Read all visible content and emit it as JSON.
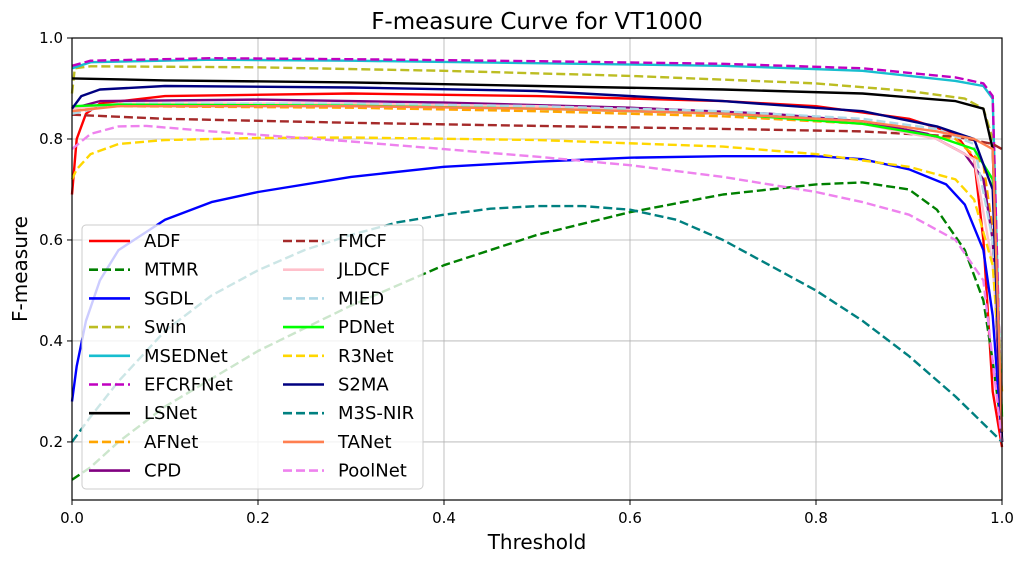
{
  "chart_data": {
    "type": "line",
    "title": "F-measure Curve for VT1000",
    "xlabel": "Threshold",
    "ylabel": "F-measure",
    "xlim": [
      0,
      1
    ],
    "ylim": [
      0.085,
      1.0
    ],
    "xticks": [
      0.0,
      0.2,
      0.4,
      0.6,
      0.8,
      1.0
    ],
    "xtick_labels": [
      "0.0",
      "0.2",
      "0.4",
      "0.6",
      "0.8",
      "1.0"
    ],
    "yticks": [
      0.2,
      0.4,
      0.6,
      0.8,
      1.0
    ],
    "ytick_labels": [
      "0.2",
      "0.4",
      "0.6",
      "0.8",
      "1.0"
    ],
    "grid": true,
    "legend": {
      "position": "lower-left",
      "columns": 2
    },
    "series": [
      {
        "name": "ADF",
        "color": "#ff0000",
        "style": "solid",
        "points": [
          [
            0,
            0.69
          ],
          [
            0.005,
            0.8
          ],
          [
            0.015,
            0.85
          ],
          [
            0.03,
            0.87
          ],
          [
            0.1,
            0.885
          ],
          [
            0.3,
            0.89
          ],
          [
            0.5,
            0.885
          ],
          [
            0.7,
            0.875
          ],
          [
            0.8,
            0.865
          ],
          [
            0.9,
            0.84
          ],
          [
            0.95,
            0.81
          ],
          [
            0.97,
            0.76
          ],
          [
            0.98,
            0.6
          ],
          [
            0.99,
            0.3
          ],
          [
            1.0,
            0.19
          ]
        ]
      },
      {
        "name": "MTMR",
        "color": "#008000",
        "style": "dashed",
        "points": [
          [
            0,
            0.125
          ],
          [
            0.02,
            0.15
          ],
          [
            0.05,
            0.2
          ],
          [
            0.1,
            0.27
          ],
          [
            0.2,
            0.38
          ],
          [
            0.3,
            0.47
          ],
          [
            0.4,
            0.55
          ],
          [
            0.5,
            0.61
          ],
          [
            0.6,
            0.655
          ],
          [
            0.7,
            0.69
          ],
          [
            0.8,
            0.71
          ],
          [
            0.85,
            0.714
          ],
          [
            0.9,
            0.7
          ],
          [
            0.93,
            0.66
          ],
          [
            0.96,
            0.58
          ],
          [
            0.98,
            0.48
          ],
          [
            0.99,
            0.36
          ],
          [
            1.0,
            0.22
          ]
        ]
      },
      {
        "name": "SGDL",
        "color": "#0000ff",
        "style": "solid",
        "points": [
          [
            0,
            0.28
          ],
          [
            0.005,
            0.35
          ],
          [
            0.015,
            0.44
          ],
          [
            0.03,
            0.52
          ],
          [
            0.05,
            0.58
          ],
          [
            0.1,
            0.64
          ],
          [
            0.15,
            0.675
          ],
          [
            0.2,
            0.695
          ],
          [
            0.3,
            0.725
          ],
          [
            0.4,
            0.745
          ],
          [
            0.5,
            0.755
          ],
          [
            0.6,
            0.763
          ],
          [
            0.7,
            0.766
          ],
          [
            0.8,
            0.766
          ],
          [
            0.85,
            0.76
          ],
          [
            0.9,
            0.74
          ],
          [
            0.94,
            0.71
          ],
          [
            0.96,
            0.67
          ],
          [
            0.98,
            0.58
          ],
          [
            0.99,
            0.45
          ],
          [
            1.0,
            0.2
          ]
        ]
      },
      {
        "name": "Swin",
        "color": "#bcbd22",
        "style": "dashed",
        "points": [
          [
            0,
            0.89
          ],
          [
            0.003,
            0.94
          ],
          [
            0.02,
            0.944
          ],
          [
            0.2,
            0.942
          ],
          [
            0.4,
            0.935
          ],
          [
            0.6,
            0.925
          ],
          [
            0.8,
            0.91
          ],
          [
            0.9,
            0.895
          ],
          [
            0.96,
            0.88
          ],
          [
            0.98,
            0.86
          ],
          [
            0.99,
            0.8
          ],
          [
            1.0,
            0.25
          ]
        ]
      },
      {
        "name": "MSEDNet",
        "color": "#17becf",
        "style": "solid",
        "points": [
          [
            0,
            0.94
          ],
          [
            0.02,
            0.952
          ],
          [
            0.15,
            0.957
          ],
          [
            0.3,
            0.955
          ],
          [
            0.5,
            0.95
          ],
          [
            0.7,
            0.945
          ],
          [
            0.85,
            0.935
          ],
          [
            0.95,
            0.915
          ],
          [
            0.98,
            0.905
          ],
          [
            0.99,
            0.88
          ],
          [
            1.0,
            0.2
          ]
        ]
      },
      {
        "name": "EFCRFNet",
        "color": "#c000c0",
        "style": "dashed",
        "points": [
          [
            0,
            0.945
          ],
          [
            0.02,
            0.955
          ],
          [
            0.15,
            0.96
          ],
          [
            0.3,
            0.958
          ],
          [
            0.5,
            0.954
          ],
          [
            0.7,
            0.949
          ],
          [
            0.85,
            0.94
          ],
          [
            0.95,
            0.922
          ],
          [
            0.98,
            0.91
          ],
          [
            0.99,
            0.885
          ],
          [
            1.0,
            0.2
          ]
        ]
      },
      {
        "name": "LSNet",
        "color": "#000000",
        "style": "solid",
        "points": [
          [
            0,
            0.92
          ],
          [
            0.1,
            0.916
          ],
          [
            0.3,
            0.912
          ],
          [
            0.5,
            0.905
          ],
          [
            0.7,
            0.898
          ],
          [
            0.85,
            0.89
          ],
          [
            0.95,
            0.875
          ],
          [
            0.98,
            0.86
          ],
          [
            0.99,
            0.78
          ],
          [
            1.0,
            0.2
          ]
        ]
      },
      {
        "name": "AFNet",
        "color": "#ffa500",
        "style": "dashed",
        "points": [
          [
            0,
            0.86
          ],
          [
            0.05,
            0.865
          ],
          [
            0.3,
            0.862
          ],
          [
            0.5,
            0.855
          ],
          [
            0.7,
            0.845
          ],
          [
            0.85,
            0.83
          ],
          [
            0.95,
            0.8
          ],
          [
            0.98,
            0.75
          ],
          [
            0.99,
            0.62
          ],
          [
            1.0,
            0.2
          ]
        ]
      },
      {
        "name": "CPD",
        "color": "#800080",
        "style": "solid",
        "points": [
          [
            0,
            0.86
          ],
          [
            0.03,
            0.875
          ],
          [
            0.2,
            0.878
          ],
          [
            0.4,
            0.872
          ],
          [
            0.6,
            0.862
          ],
          [
            0.75,
            0.85
          ],
          [
            0.85,
            0.835
          ],
          [
            0.92,
            0.81
          ],
          [
            0.96,
            0.77
          ],
          [
            0.98,
            0.72
          ],
          [
            0.99,
            0.6
          ],
          [
            1.0,
            0.2
          ]
        ]
      },
      {
        "name": "FMCF",
        "color": "#a52a2a",
        "style": "dashed",
        "points": [
          [
            0,
            0.848
          ],
          [
            0.1,
            0.84
          ],
          [
            0.3,
            0.832
          ],
          [
            0.5,
            0.826
          ],
          [
            0.7,
            0.82
          ],
          [
            0.85,
            0.815
          ],
          [
            0.95,
            0.805
          ],
          [
            0.99,
            0.79
          ],
          [
            1.0,
            0.78
          ]
        ]
      },
      {
        "name": "JLDCF",
        "color": "#ffc0cb",
        "style": "solid",
        "points": [
          [
            0,
            0.86
          ],
          [
            0.05,
            0.87
          ],
          [
            0.3,
            0.87
          ],
          [
            0.5,
            0.865
          ],
          [
            0.7,
            0.85
          ],
          [
            0.85,
            0.83
          ],
          [
            0.93,
            0.8
          ],
          [
            0.97,
            0.76
          ],
          [
            0.99,
            0.55
          ],
          [
            1.0,
            0.3
          ]
        ]
      },
      {
        "name": "MIED",
        "color": "#add8e6",
        "style": "dashed",
        "points": [
          [
            0,
            0.85
          ],
          [
            0.05,
            0.87
          ],
          [
            0.3,
            0.87
          ],
          [
            0.5,
            0.865
          ],
          [
            0.7,
            0.855
          ],
          [
            0.85,
            0.84
          ],
          [
            0.93,
            0.82
          ],
          [
            0.97,
            0.79
          ],
          [
            0.99,
            0.6
          ],
          [
            1.0,
            0.3
          ]
        ]
      },
      {
        "name": "PDNet",
        "color": "#00ff00",
        "style": "solid",
        "points": [
          [
            0,
            0.865
          ],
          [
            0.05,
            0.868
          ],
          [
            0.3,
            0.866
          ],
          [
            0.5,
            0.86
          ],
          [
            0.7,
            0.85
          ],
          [
            0.85,
            0.83
          ],
          [
            0.93,
            0.805
          ],
          [
            0.97,
            0.78
          ],
          [
            0.99,
            0.72
          ],
          [
            1.0,
            0.25
          ]
        ]
      },
      {
        "name": "R3Net",
        "color": "#ffd700",
        "style": "dashed",
        "points": [
          [
            0,
            0.72
          ],
          [
            0.005,
            0.74
          ],
          [
            0.02,
            0.77
          ],
          [
            0.05,
            0.79
          ],
          [
            0.1,
            0.798
          ],
          [
            0.2,
            0.802
          ],
          [
            0.3,
            0.803
          ],
          [
            0.5,
            0.798
          ],
          [
            0.7,
            0.785
          ],
          [
            0.8,
            0.77
          ],
          [
            0.9,
            0.745
          ],
          [
            0.95,
            0.72
          ],
          [
            0.97,
            0.68
          ],
          [
            0.99,
            0.55
          ],
          [
            1.0,
            0.3
          ]
        ]
      },
      {
        "name": "S2MA",
        "color": "#000080",
        "style": "solid",
        "points": [
          [
            0,
            0.86
          ],
          [
            0.01,
            0.885
          ],
          [
            0.03,
            0.898
          ],
          [
            0.1,
            0.905
          ],
          [
            0.3,
            0.902
          ],
          [
            0.5,
            0.895
          ],
          [
            0.7,
            0.875
          ],
          [
            0.85,
            0.855
          ],
          [
            0.93,
            0.825
          ],
          [
            0.97,
            0.8
          ],
          [
            0.99,
            0.7
          ],
          [
            1.0,
            0.2
          ]
        ]
      },
      {
        "name": "M3S-NIR",
        "color": "#008080",
        "style": "dashed",
        "points": [
          [
            0,
            0.2
          ],
          [
            0.02,
            0.25
          ],
          [
            0.05,
            0.32
          ],
          [
            0.1,
            0.42
          ],
          [
            0.15,
            0.49
          ],
          [
            0.2,
            0.54
          ],
          [
            0.25,
            0.58
          ],
          [
            0.3,
            0.61
          ],
          [
            0.35,
            0.635
          ],
          [
            0.4,
            0.65
          ],
          [
            0.45,
            0.662
          ],
          [
            0.5,
            0.667
          ],
          [
            0.55,
            0.667
          ],
          [
            0.6,
            0.66
          ],
          [
            0.65,
            0.64
          ],
          [
            0.7,
            0.6
          ],
          [
            0.75,
            0.55
          ],
          [
            0.8,
            0.5
          ],
          [
            0.85,
            0.44
          ],
          [
            0.9,
            0.37
          ],
          [
            0.95,
            0.29
          ],
          [
            1.0,
            0.2
          ]
        ]
      },
      {
        "name": "TANet",
        "color": "#ff7f50",
        "style": "solid",
        "points": [
          [
            0,
            0.855
          ],
          [
            0.05,
            0.865
          ],
          [
            0.3,
            0.865
          ],
          [
            0.5,
            0.86
          ],
          [
            0.7,
            0.85
          ],
          [
            0.85,
            0.835
          ],
          [
            0.93,
            0.815
          ],
          [
            0.97,
            0.8
          ],
          [
            0.99,
            0.78
          ],
          [
            1.0,
            0.22
          ]
        ]
      },
      {
        "name": "PoolNet",
        "color": "#ee82ee",
        "style": "dashed",
        "points": [
          [
            0,
            0.78
          ],
          [
            0.02,
            0.81
          ],
          [
            0.05,
            0.825
          ],
          [
            0.08,
            0.826
          ],
          [
            0.15,
            0.815
          ],
          [
            0.3,
            0.795
          ],
          [
            0.4,
            0.78
          ],
          [
            0.5,
            0.765
          ],
          [
            0.6,
            0.748
          ],
          [
            0.7,
            0.725
          ],
          [
            0.8,
            0.695
          ],
          [
            0.85,
            0.675
          ],
          [
            0.9,
            0.65
          ],
          [
            0.95,
            0.6
          ],
          [
            0.98,
            0.52
          ],
          [
            1.0,
            0.2
          ]
        ]
      }
    ]
  }
}
